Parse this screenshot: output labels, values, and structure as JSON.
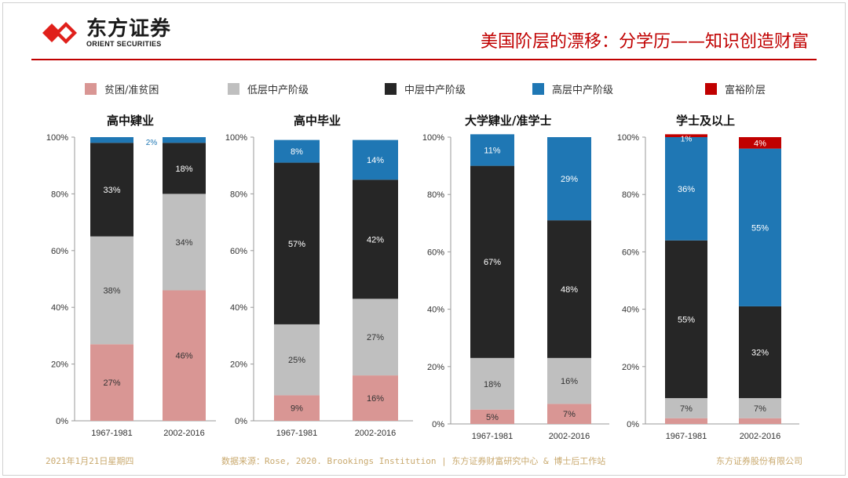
{
  "header": {
    "logo_cn": "东方证券",
    "logo_en": "ORIENT SECURITIES",
    "title": "美国阶层的漂移：分学历——知识创造财富"
  },
  "legend": [
    {
      "label": "贫困/准贫困",
      "color": "#d99694"
    },
    {
      "label": "低层中产阶级",
      "color": "#bfbfbf"
    },
    {
      "label": "中层中产阶级",
      "color": "#262626"
    },
    {
      "label": "高层中产阶级",
      "color": "#1f77b4"
    },
    {
      "label": "富裕阶层",
      "color": "#c00000"
    }
  ],
  "chart_data": [
    {
      "type": "bar",
      "stacked": true,
      "title": "高中肄业",
      "categories": [
        "1967-1981",
        "2002-2016"
      ],
      "ylim": [
        0,
        100
      ],
      "yticks": [
        "0%",
        "20%",
        "40%",
        "60%",
        "80%",
        "100%"
      ],
      "series": [
        {
          "name": "贫困/准贫困",
          "values": [
            27,
            46
          ],
          "labels": [
            "27%",
            "46%"
          ]
        },
        {
          "name": "低层中产阶级",
          "values": [
            38,
            34
          ],
          "labels": [
            "38%",
            "34%"
          ]
        },
        {
          "name": "中层中产阶级",
          "values": [
            33,
            18
          ],
          "labels": [
            "33%",
            "18%"
          ]
        },
        {
          "name": "高层中产阶级",
          "values": [
            2,
            2
          ],
          "labels": [
            "",
            "2%"
          ]
        },
        {
          "name": "富裕阶层",
          "values": [
            0,
            0
          ],
          "labels": [
            "",
            ""
          ]
        }
      ]
    },
    {
      "type": "bar",
      "stacked": true,
      "title": "高中毕业",
      "categories": [
        "1967-1981",
        "2002-2016"
      ],
      "ylim": [
        0,
        100
      ],
      "yticks": [
        "0%",
        "20%",
        "40%",
        "60%",
        "80%",
        "100%"
      ],
      "series": [
        {
          "name": "贫困/准贫困",
          "values": [
            9,
            16
          ],
          "labels": [
            "9%",
            "16%"
          ]
        },
        {
          "name": "低层中产阶级",
          "values": [
            25,
            27
          ],
          "labels": [
            "25%",
            "27%"
          ]
        },
        {
          "name": "中层中产阶级",
          "values": [
            57,
            42
          ],
          "labels": [
            "57%",
            "42%"
          ]
        },
        {
          "name": "高层中产阶级",
          "values": [
            8,
            14
          ],
          "labels": [
            "8%",
            "14%"
          ]
        },
        {
          "name": "富裕阶层",
          "values": [
            0,
            0
          ],
          "labels": [
            "",
            ""
          ]
        }
      ]
    },
    {
      "type": "bar",
      "stacked": true,
      "title": "大学肄业/准学士",
      "categories": [
        "1967-1981",
        "2002-2016"
      ],
      "ylim": [
        0,
        100
      ],
      "yticks": [
        "0%",
        "20%",
        "40%",
        "60%",
        "80%",
        "100%"
      ],
      "series": [
        {
          "name": "贫困/准贫困",
          "values": [
            5,
            7
          ],
          "labels": [
            "5%",
            "7%"
          ]
        },
        {
          "name": "低层中产阶级",
          "values": [
            18,
            16
          ],
          "labels": [
            "18%",
            "16%"
          ]
        },
        {
          "name": "中层中产阶级",
          "values": [
            67,
            48
          ],
          "labels": [
            "67%",
            "48%"
          ]
        },
        {
          "name": "高层中产阶级",
          "values": [
            11,
            29
          ],
          "labels": [
            "11%",
            "29%"
          ]
        },
        {
          "name": "富裕阶层",
          "values": [
            0,
            0
          ],
          "labels": [
            "",
            ""
          ]
        }
      ]
    },
    {
      "type": "bar",
      "stacked": true,
      "title": "学士及以上",
      "categories": [
        "1967-1981",
        "2002-2016"
      ],
      "ylim": [
        0,
        100
      ],
      "yticks": [
        "0%",
        "20%",
        "40%",
        "60%",
        "80%",
        "100%"
      ],
      "series": [
        {
          "name": "贫困/准贫困",
          "values": [
            2,
            2
          ],
          "labels": [
            "",
            ""
          ]
        },
        {
          "name": "低层中产阶级",
          "values": [
            7,
            7
          ],
          "labels": [
            "7%",
            "7%"
          ]
        },
        {
          "name": "中层中产阶级",
          "values": [
            55,
            32
          ],
          "labels": [
            "55%",
            "32%"
          ]
        },
        {
          "name": "高层中产阶级",
          "values": [
            36,
            55
          ],
          "labels": [
            "36%",
            "55%"
          ]
        },
        {
          "name": "富裕阶层",
          "values": [
            1,
            4
          ],
          "labels": [
            "1%",
            "4%"
          ]
        }
      ]
    }
  ],
  "footer": {
    "date": "2021年1月21日星期四",
    "source": "数据来源：Rose, 2020. Brookings Institution | 东方证券财富研究中心 & 博士后工作站",
    "company": "东方证券股份有限公司"
  }
}
